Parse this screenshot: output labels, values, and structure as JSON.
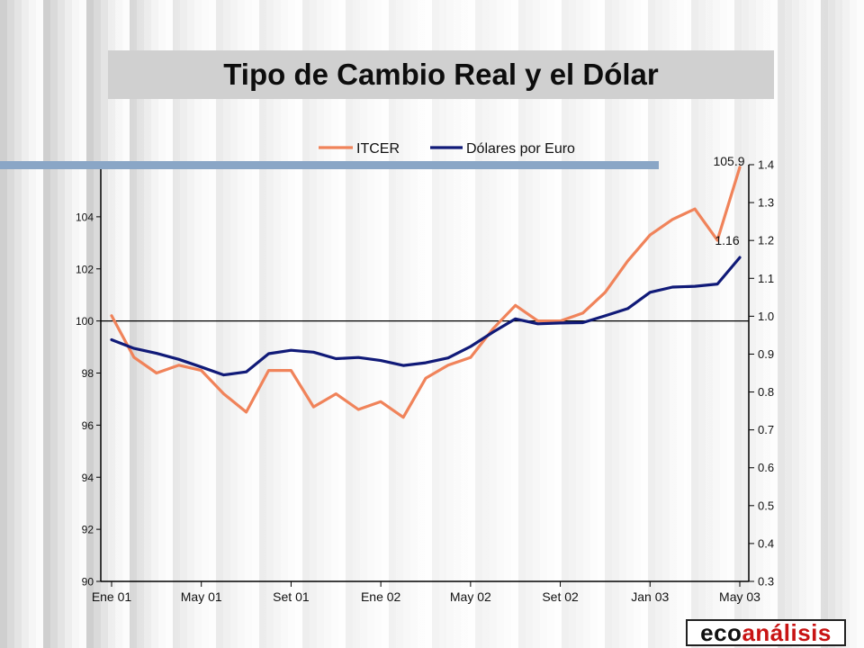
{
  "title": "Tipo de Cambio Real y el Dólar",
  "logo": {
    "part1": "eco",
    "part2": "análisis"
  },
  "colors": {
    "itcer": "#f0835a",
    "usd_eur": "#101a78",
    "title_box": "#d0d0d0",
    "deco_bar": "#8aa6c6"
  },
  "chart_data": {
    "type": "line",
    "title": "",
    "x_tick_labels": [
      "Ene 01",
      "May 01",
      "Set 01",
      "Ene 02",
      "May 02",
      "Set 02",
      "Jan 03",
      "May 03"
    ],
    "x_tick_indices": [
      0,
      4,
      8,
      12,
      16,
      20,
      24,
      28
    ],
    "y_left": {
      "ylim": [
        90,
        106
      ],
      "ticks": [
        "90",
        "92",
        "94",
        "96",
        "98",
        "100",
        "102",
        "104",
        "106"
      ]
    },
    "y_right": {
      "ylim": [
        0.3,
        1.4
      ],
      "ticks": [
        "0.3",
        "0.4",
        "0.5",
        "0.6",
        "0.7",
        "0.8",
        "0.9",
        "1.0",
        "1.1",
        "1.2",
        "1.3",
        "1.4"
      ]
    },
    "reference_line": {
      "axis": "left",
      "value": 100
    },
    "legend": {
      "placement": "top-center",
      "entries": [
        "ITCER",
        "Dólares por Euro"
      ]
    },
    "series": [
      {
        "name": "ITCER",
        "axis": "left",
        "values": [
          100.2,
          98.6,
          98.0,
          98.3,
          98.1,
          97.2,
          96.5,
          98.1,
          98.1,
          96.7,
          97.2,
          96.6,
          96.9,
          96.3,
          97.8,
          98.3,
          98.6,
          99.7,
          100.6,
          100.0,
          100.0,
          100.3,
          101.1,
          102.3,
          103.3,
          103.9,
          104.3,
          103.1,
          105.9
        ],
        "end_label": "105.9"
      },
      {
        "name": "Dólares por Euro",
        "axis": "right",
        "values": [
          0.938,
          0.915,
          0.902,
          0.886,
          0.866,
          0.845,
          0.853,
          0.901,
          0.91,
          0.905,
          0.888,
          0.891,
          0.883,
          0.87,
          0.877,
          0.89,
          0.92,
          0.958,
          0.993,
          0.98,
          0.982,
          0.983,
          1.001,
          1.02,
          1.063,
          1.077,
          1.079,
          1.085,
          1.155
        ],
        "end_label": "1.16"
      }
    ]
  }
}
